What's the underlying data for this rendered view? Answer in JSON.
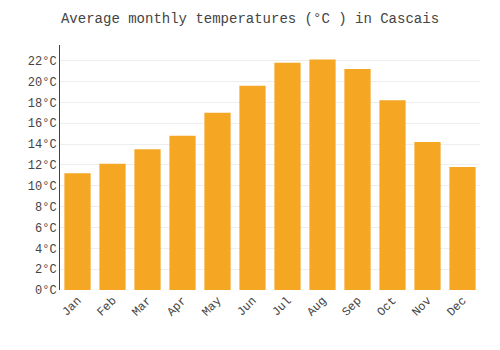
{
  "chart_data": {
    "type": "bar",
    "title": "Average monthly temperatures (°C ) in Cascais",
    "categories": [
      "Jan",
      "Feb",
      "Mar",
      "Apr",
      "May",
      "Jun",
      "Jul",
      "Aug",
      "Sep",
      "Oct",
      "Nov",
      "Dec"
    ],
    "values": [
      11.2,
      12.1,
      13.5,
      14.8,
      17.0,
      19.6,
      21.8,
      22.1,
      21.2,
      18.2,
      14.2,
      11.8
    ],
    "color": "#F5A623",
    "ylim": [
      0,
      23.5
    ],
    "yticks": [
      {
        "value": 0,
        "label": "0°C"
      },
      {
        "value": 2,
        "label": "2°C"
      },
      {
        "value": 4,
        "label": "4°C"
      },
      {
        "value": 6,
        "label": "6°C"
      },
      {
        "value": 8,
        "label": "8°C"
      },
      {
        "value": 10,
        "label": "10°C"
      },
      {
        "value": 12,
        "label": "12°C"
      },
      {
        "value": 14,
        "label": "14°C"
      },
      {
        "value": 16,
        "label": "16°C"
      },
      {
        "value": 18,
        "label": "18°C"
      },
      {
        "value": 20,
        "label": "20°C"
      },
      {
        "value": 22,
        "label": "22°C"
      }
    ],
    "grid": true
  }
}
